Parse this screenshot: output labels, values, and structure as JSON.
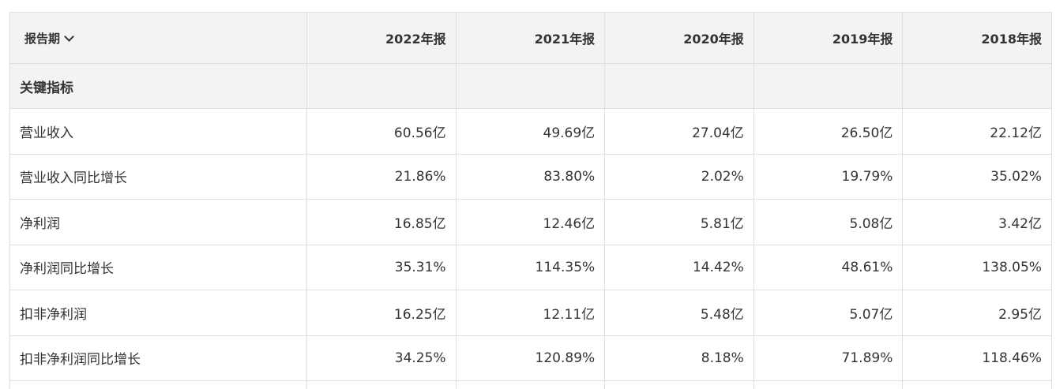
{
  "header": {
    "period_label": "报告期",
    "years": [
      "2022年报",
      "2021年报",
      "2020年报",
      "2019年报",
      "2018年报"
    ]
  },
  "section": {
    "label": "关键指标"
  },
  "rows": [
    {
      "label": "营业收入",
      "values": [
        "60.56亿",
        "49.69亿",
        "27.04亿",
        "26.50亿",
        "22.12亿"
      ]
    },
    {
      "label": "营业收入同比增长",
      "values": [
        "21.86%",
        "83.80%",
        "2.02%",
        "19.79%",
        "35.02%"
      ]
    },
    {
      "label": "净利润",
      "values": [
        "16.85亿",
        "12.46亿",
        "5.81亿",
        "5.08亿",
        "3.42亿"
      ]
    },
    {
      "label": "净利润同比增长",
      "values": [
        "35.31%",
        "114.35%",
        "14.42%",
        "48.61%",
        "138.05%"
      ]
    },
    {
      "label": "扣非净利润",
      "values": [
        "16.25亿",
        "12.11亿",
        "5.48亿",
        "5.07亿",
        "2.95亿"
      ]
    },
    {
      "label": "扣非净利润同比增长",
      "values": [
        "34.25%",
        "120.89%",
        "8.18%",
        "71.89%",
        "118.46%"
      ]
    }
  ]
}
